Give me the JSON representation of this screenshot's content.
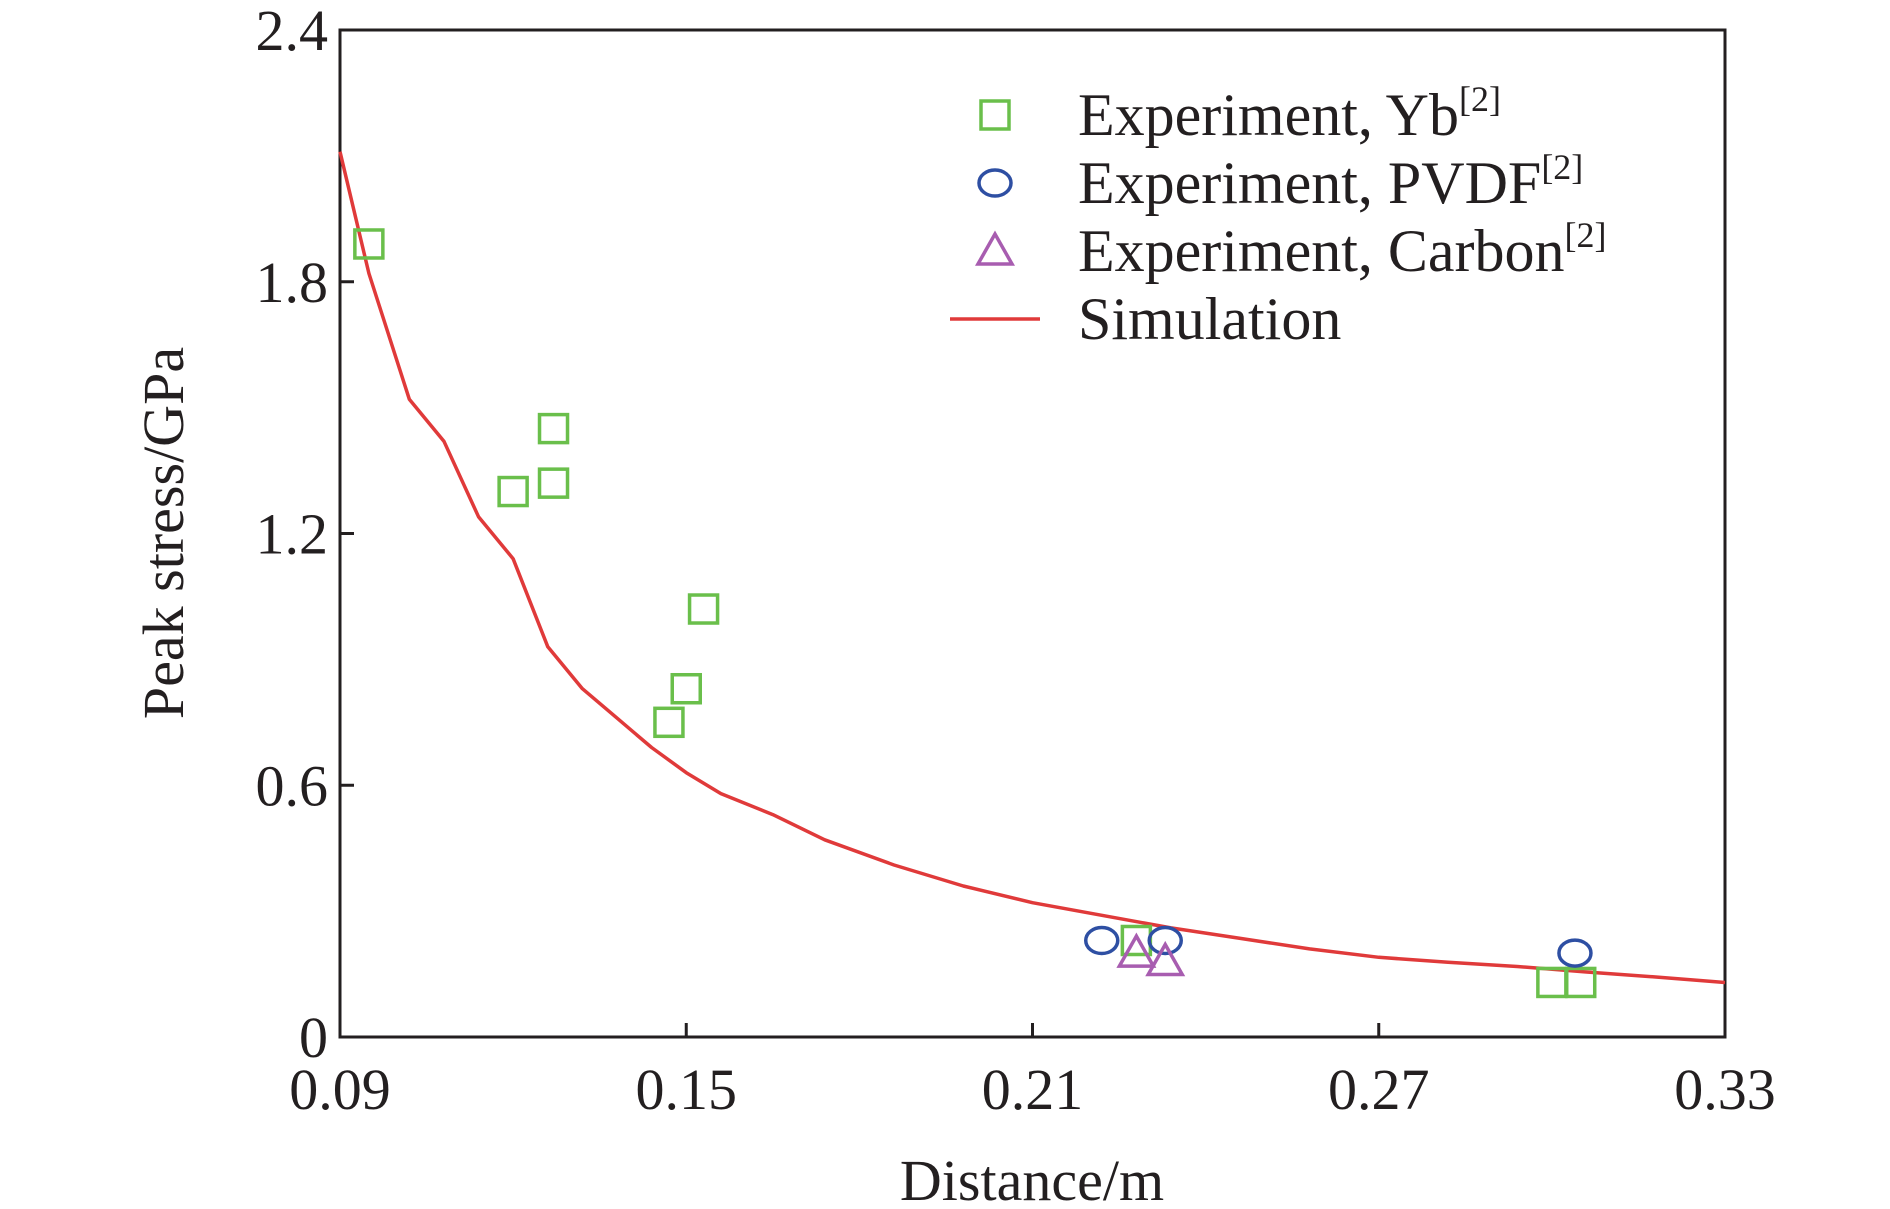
{
  "chart_data": {
    "type": "scatter",
    "title": "",
    "xlabel": "Distance/m",
    "ylabel": "Peak stress/GPa",
    "xlim": [
      0.09,
      0.33
    ],
    "ylim": [
      0,
      2.4
    ],
    "x_ticks": [
      "0.09",
      "0.15",
      "0.21",
      "0.27",
      "0.33"
    ],
    "y_ticks": [
      "0",
      "0.6",
      "1.2",
      "1.8",
      "2.4"
    ],
    "legend_position": "top-right",
    "grid": false,
    "series": [
      {
        "name": "Experiment, Yb",
        "name_superscript": "[2]",
        "kind": "scatter",
        "marker": "square",
        "color": "#6abf4b",
        "points": [
          [
            0.095,
            1.89
          ],
          [
            0.12,
            1.3
          ],
          [
            0.127,
            1.32
          ],
          [
            0.127,
            1.45
          ],
          [
            0.147,
            0.75
          ],
          [
            0.15,
            0.83
          ],
          [
            0.153,
            1.02
          ],
          [
            0.228,
            0.23
          ],
          [
            0.3,
            0.13
          ],
          [
            0.305,
            0.13
          ]
        ]
      },
      {
        "name": "Experiment, PVDF",
        "name_superscript": "[2]",
        "kind": "scatter",
        "marker": "circle",
        "color": "#2e4fa3",
        "points": [
          [
            0.222,
            0.23
          ],
          [
            0.233,
            0.23
          ],
          [
            0.304,
            0.2
          ]
        ]
      },
      {
        "name": "Experiment, Carbon",
        "name_superscript": "[2]",
        "kind": "scatter",
        "marker": "triangle",
        "color": "#a85db0",
        "points": [
          [
            0.228,
            0.2
          ],
          [
            0.233,
            0.18
          ]
        ]
      },
      {
        "name": "Simulation",
        "name_superscript": "",
        "kind": "line",
        "marker": "none",
        "color": "#e03a3a",
        "points": [
          [
            0.09,
            2.11
          ],
          [
            0.095,
            1.82
          ],
          [
            0.102,
            1.52
          ],
          [
            0.108,
            1.42
          ],
          [
            0.114,
            1.24
          ],
          [
            0.12,
            1.14
          ],
          [
            0.126,
            0.93
          ],
          [
            0.132,
            0.83
          ],
          [
            0.138,
            0.76
          ],
          [
            0.144,
            0.69
          ],
          [
            0.15,
            0.63
          ],
          [
            0.156,
            0.58
          ],
          [
            0.165,
            0.53
          ],
          [
            0.174,
            0.47
          ],
          [
            0.186,
            0.41
          ],
          [
            0.198,
            0.36
          ],
          [
            0.21,
            0.32
          ],
          [
            0.222,
            0.29
          ],
          [
            0.234,
            0.26
          ],
          [
            0.246,
            0.235
          ],
          [
            0.258,
            0.21
          ],
          [
            0.27,
            0.19
          ],
          [
            0.282,
            0.178
          ],
          [
            0.294,
            0.168
          ],
          [
            0.306,
            0.155
          ],
          [
            0.318,
            0.143
          ],
          [
            0.33,
            0.13
          ]
        ]
      }
    ]
  }
}
